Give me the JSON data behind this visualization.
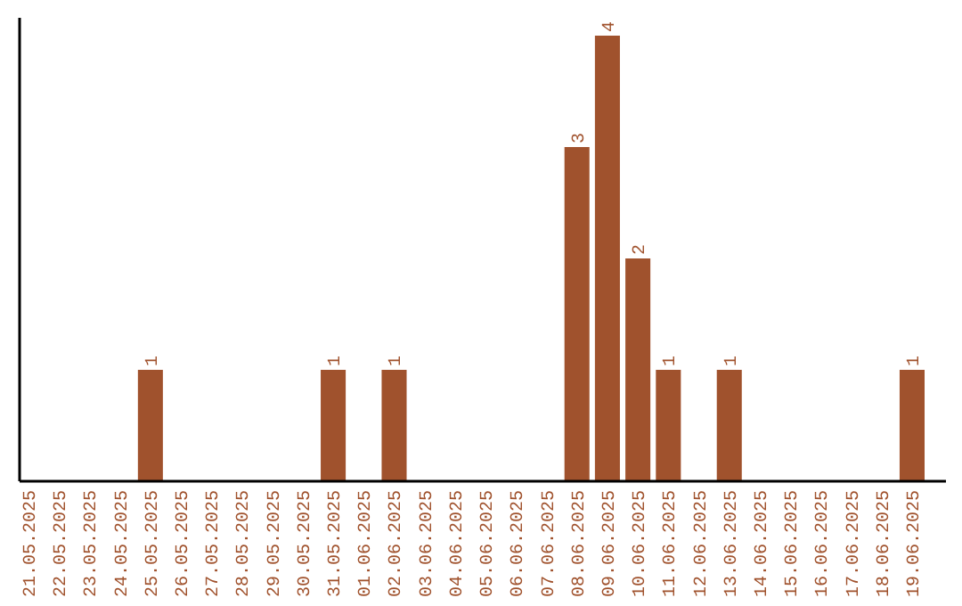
{
  "chart_data": {
    "type": "bar",
    "categories": [
      "21.05.2025",
      "22.05.2025",
      "23.05.2025",
      "24.05.2025",
      "25.05.2025",
      "26.05.2025",
      "27.05.2025",
      "28.05.2025",
      "29.05.2025",
      "30.05.2025",
      "31.05.2025",
      "01.06.2025",
      "02.06.2025",
      "03.06.2025",
      "04.06.2025",
      "05.06.2025",
      "06.06.2025",
      "07.06.2025",
      "08.06.2025",
      "09.06.2025",
      "10.06.2025",
      "11.06.2025",
      "12.06.2025",
      "13.06.2025",
      "14.06.2025",
      "15.06.2025",
      "16.06.2025",
      "17.06.2025",
      "18.06.2025",
      "19.06.2025"
    ],
    "values": [
      0,
      0,
      0,
      0,
      1,
      0,
      0,
      0,
      0,
      0,
      1,
      0,
      1,
      0,
      0,
      0,
      0,
      0,
      3,
      4,
      2,
      1,
      0,
      1,
      0,
      0,
      0,
      0,
      0,
      1
    ],
    "value_labels": [
      null,
      null,
      null,
      null,
      "1",
      null,
      null,
      null,
      null,
      null,
      "1",
      null,
      "1",
      null,
      null,
      null,
      null,
      null,
      "3",
      "4",
      "2",
      "1",
      null,
      "1",
      null,
      null,
      null,
      null,
      null,
      "1"
    ],
    "color": "#a0522d",
    "tick_labels": "x"
  }
}
